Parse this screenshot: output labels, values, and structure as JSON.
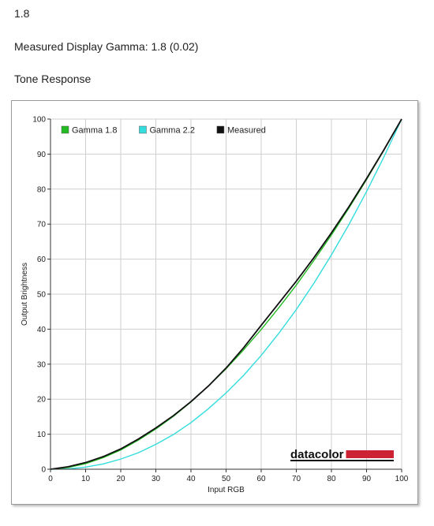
{
  "header": {
    "gamma_value": "1.8",
    "measured_line": "Measured Display Gamma: 1.8 (0.02)",
    "section_title": "Tone Response"
  },
  "logo": {
    "text": "datacolor"
  },
  "chart_data": {
    "type": "line",
    "title": "",
    "xlabel": "Input RGB",
    "ylabel": "Output Brightness",
    "xlim": [
      0,
      100
    ],
    "ylim": [
      0,
      100
    ],
    "x_ticks": [
      0,
      10,
      20,
      30,
      40,
      50,
      60,
      70,
      80,
      90,
      100
    ],
    "y_ticks": [
      0,
      10,
      20,
      30,
      40,
      50,
      60,
      70,
      80,
      90,
      100
    ],
    "grid": true,
    "legend_position": "top-left",
    "x": [
      0,
      5,
      10,
      15,
      20,
      25,
      30,
      35,
      40,
      45,
      50,
      55,
      60,
      65,
      70,
      75,
      80,
      85,
      90,
      95,
      100
    ],
    "series": [
      {
        "name": "Gamma 1.8",
        "color": "#22bb22",
        "values": [
          0,
          0.5,
          1.6,
          3.3,
          5.5,
          8.3,
          11.5,
          15.1,
          19.2,
          23.8,
          28.7,
          34.1,
          39.9,
          46.1,
          52.6,
          59.6,
          66.9,
          74.6,
          82.7,
          91.2,
          100
        ]
      },
      {
        "name": "Gamma 2.2",
        "color": "#33dddd",
        "values": [
          0,
          0.1,
          0.6,
          1.5,
          2.9,
          4.7,
          7.1,
          9.9,
          13.3,
          17.3,
          21.8,
          26.8,
          32.5,
          38.8,
          45.6,
          53.1,
          61.2,
          69.9,
          79.3,
          89.3,
          100
        ]
      },
      {
        "name": "Measured",
        "color": "#111111",
        "values": [
          0,
          0.7,
          1.9,
          3.6,
          5.8,
          8.6,
          11.8,
          15.3,
          19.3,
          23.8,
          28.9,
          34.7,
          41.1,
          47.4,
          53.7,
          60.4,
          67.5,
          75.0,
          83.0,
          91.3,
          100
        ]
      }
    ]
  }
}
